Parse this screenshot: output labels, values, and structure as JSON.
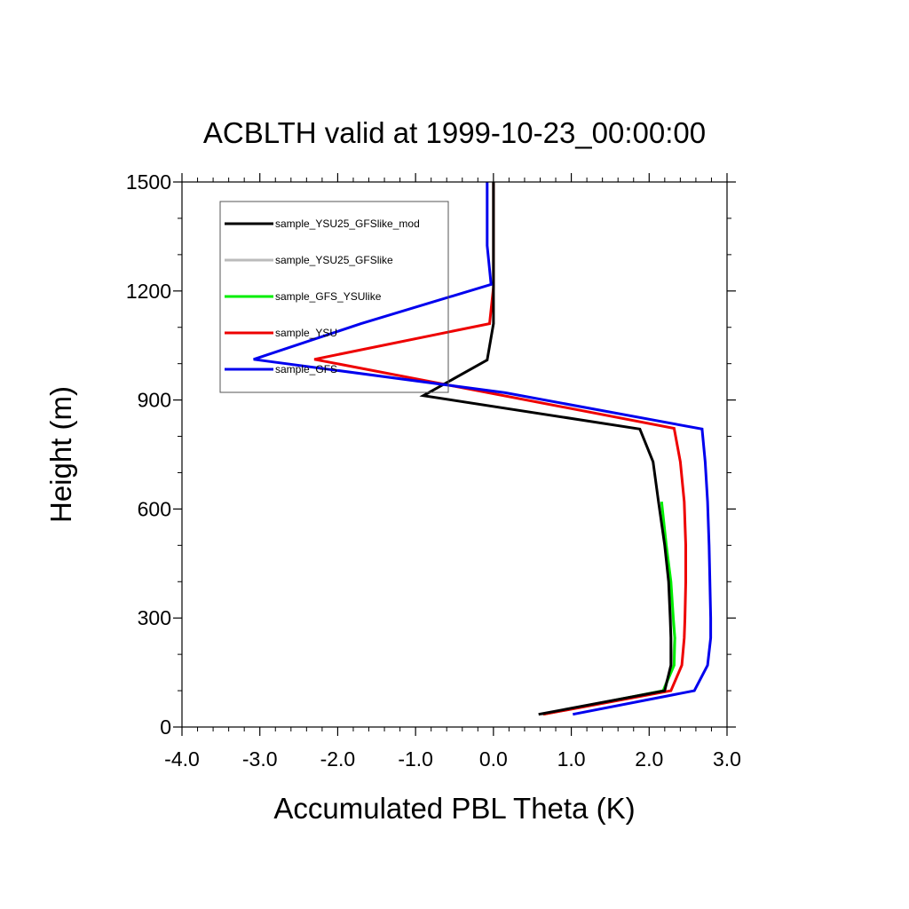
{
  "chart_data": {
    "type": "line",
    "title": "ACBLTH valid at 1999-10-23_00:00:00",
    "xlabel": "Accumulated PBL Theta (K)",
    "ylabel": "Height (m)",
    "xlim": [
      -4.0,
      3.0
    ],
    "ylim": [
      0,
      1500
    ],
    "xticks": [
      "-4.0",
      "-3.0",
      "-2.0",
      "-1.0",
      "0.0",
      "1.0",
      "2.0",
      "3.0"
    ],
    "xtick_values": [
      -4,
      -3,
      -2,
      -1,
      0,
      1,
      2,
      3
    ],
    "yticks": [
      "0",
      "300",
      "600",
      "900",
      "1200",
      "1500"
    ],
    "ytick_values": [
      0,
      300,
      600,
      900,
      1200,
      1500
    ],
    "grid": false,
    "legend_position": "top-left",
    "series": [
      {
        "name": "sample_YSU25_GFSlike_mod",
        "color": "#000000",
        "points": [
          [
            0.58,
            35
          ],
          [
            2.2,
            100
          ],
          [
            2.28,
            170
          ],
          [
            2.28,
            245
          ],
          [
            2.27,
            300
          ],
          [
            2.25,
            400
          ],
          [
            2.2,
            500
          ],
          [
            2.12,
            620
          ],
          [
            2.05,
            730
          ],
          [
            1.88,
            820
          ],
          [
            -0.9,
            912
          ],
          [
            -0.08,
            1010
          ],
          [
            0.0,
            1110
          ],
          [
            0.0,
            1210
          ],
          [
            0.0,
            1500
          ]
        ]
      },
      {
        "name": "sample_YSU25_GFSlike",
        "color": "#bbbbbb",
        "points": [
          [
            0.62,
            35
          ],
          [
            2.18,
            100
          ],
          [
            2.3,
            170
          ],
          [
            2.33,
            245
          ],
          [
            2.3,
            300
          ],
          [
            2.26,
            400
          ],
          [
            2.21,
            500
          ]
        ]
      },
      {
        "name": "sample_GFS_YSUlike",
        "color": "#00ee00",
        "points": [
          [
            0.64,
            35
          ],
          [
            2.18,
            100
          ],
          [
            2.32,
            170
          ],
          [
            2.33,
            245
          ],
          [
            2.31,
            300
          ],
          [
            2.28,
            400
          ],
          [
            2.22,
            500
          ],
          [
            2.16,
            620
          ]
        ]
      },
      {
        "name": "sample_YSU",
        "color": "#ee0000",
        "points": [
          [
            0.64,
            35
          ],
          [
            2.28,
            100
          ],
          [
            2.42,
            170
          ],
          [
            2.45,
            245
          ],
          [
            2.46,
            300
          ],
          [
            2.47,
            400
          ],
          [
            2.47,
            500
          ],
          [
            2.45,
            620
          ],
          [
            2.4,
            730
          ],
          [
            2.32,
            822
          ],
          [
            -2.3,
            1012
          ],
          [
            -0.05,
            1110
          ],
          [
            0.0,
            1210
          ],
          [
            0.0,
            1500
          ]
        ]
      },
      {
        "name": "sample_GFS",
        "color": "#0000ee",
        "points": [
          [
            1.02,
            35
          ],
          [
            2.58,
            100
          ],
          [
            2.75,
            170
          ],
          [
            2.79,
            245
          ],
          [
            2.79,
            300
          ],
          [
            2.78,
            400
          ],
          [
            2.77,
            500
          ],
          [
            2.75,
            620
          ],
          [
            2.72,
            730
          ],
          [
            2.68,
            820
          ],
          [
            0.15,
            920
          ],
          [
            -3.08,
            1012
          ],
          [
            -1.7,
            1110
          ],
          [
            -0.03,
            1218
          ],
          [
            -0.08,
            1325
          ],
          [
            -0.08,
            1500
          ]
        ]
      }
    ]
  }
}
